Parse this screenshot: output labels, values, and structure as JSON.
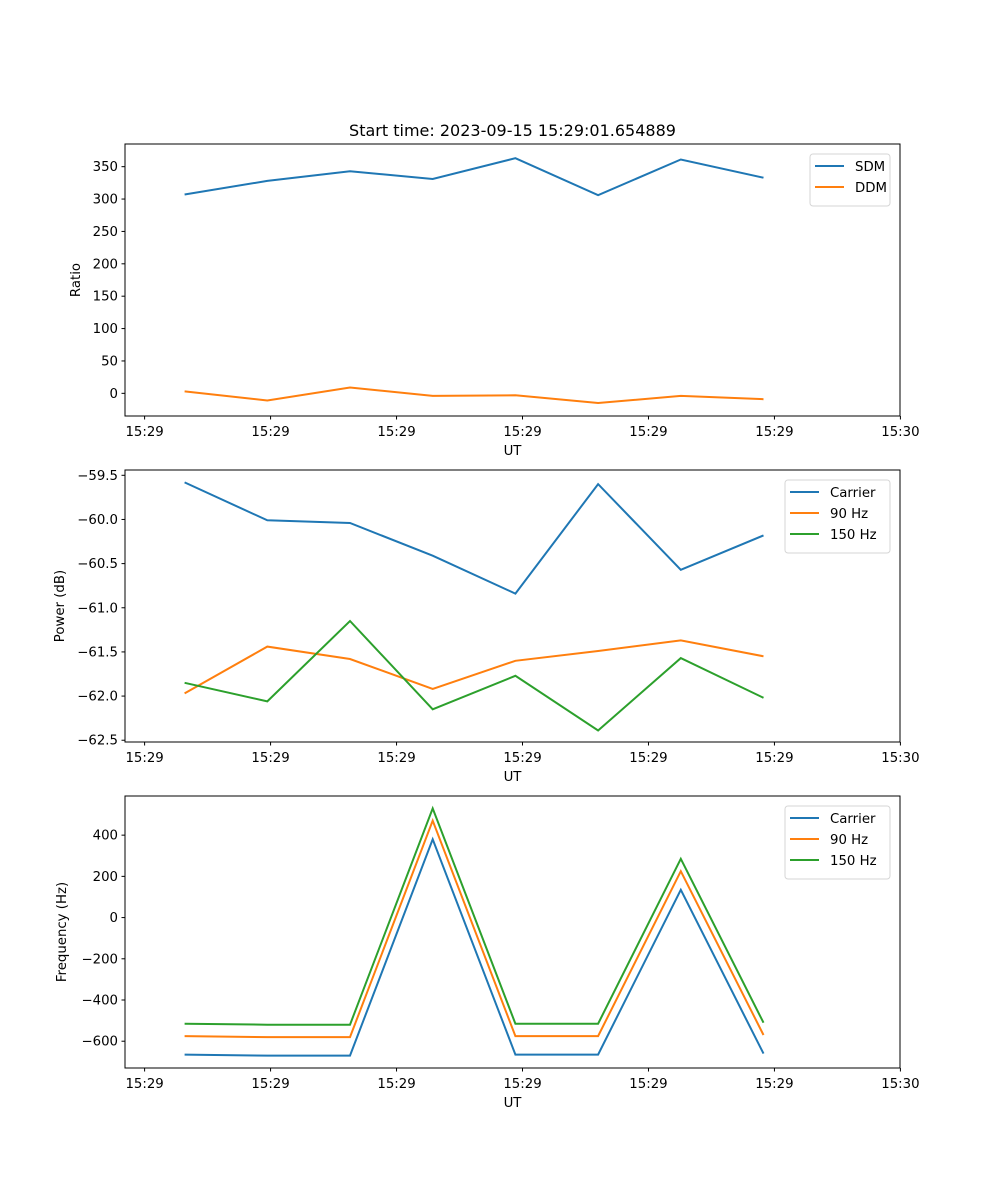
{
  "figure": {
    "title": "Start time: 2023-09-15 15:29:01.654889"
  },
  "chart_data": [
    {
      "type": "line",
      "title": "Start time: 2023-09-15 15:29:01.654889",
      "xlabel": "UT",
      "ylabel": "Ratio",
      "x_tick_labels": [
        "15:29",
        "15:29",
        "15:29",
        "15:29",
        "15:29",
        "15:29",
        "15:30"
      ],
      "y_ticks": [
        0,
        50,
        100,
        150,
        200,
        250,
        300,
        350
      ],
      "y_tick_labels": [
        "0",
        "50",
        "100",
        "150",
        "200",
        "250",
        "300",
        "350"
      ],
      "ylim": [
        -35,
        385
      ],
      "x_index_range": [
        -0.72,
        8.65
      ],
      "x_index": [
        0,
        1,
        2,
        3,
        4,
        5,
        6,
        7
      ],
      "legend": "top-right",
      "grid": false,
      "series": [
        {
          "name": "SDM",
          "color": "#1f77b4",
          "values": [
            307,
            328,
            343,
            331,
            363,
            306,
            361,
            333
          ]
        },
        {
          "name": "DDM",
          "color": "#ff7f0e",
          "values": [
            3,
            -11,
            9,
            -4,
            -3,
            -15,
            -4,
            -9
          ]
        }
      ]
    },
    {
      "type": "line",
      "title": "",
      "xlabel": "UT",
      "ylabel": "Power (dB)",
      "x_tick_labels": [
        "15:29",
        "15:29",
        "15:29",
        "15:29",
        "15:29",
        "15:29",
        "15:30"
      ],
      "y_ticks": [
        -59.5,
        -60.0,
        -60.5,
        -61.0,
        -61.5,
        -62.0,
        -62.5
      ],
      "y_tick_labels": [
        "−59.5",
        "−60.0",
        "−60.5",
        "−61.0",
        "−61.5",
        "−62.0",
        "−62.5"
      ],
      "ylim": [
        -62.52,
        -59.44
      ],
      "x_index_range": [
        -0.72,
        8.65
      ],
      "x_index": [
        0,
        1,
        2,
        3,
        4,
        5,
        6,
        7
      ],
      "legend": "top-right",
      "grid": false,
      "series": [
        {
          "name": "Carrier",
          "color": "#1f77b4",
          "values": [
            -59.58,
            -60.01,
            -60.04,
            -60.41,
            -60.84,
            -59.6,
            -60.57,
            -60.18
          ]
        },
        {
          "name": "90 Hz",
          "color": "#ff7f0e",
          "values": [
            -61.97,
            -61.44,
            -61.58,
            -61.92,
            -61.6,
            -61.49,
            -61.37,
            -61.55
          ]
        },
        {
          "name": "150 Hz",
          "color": "#2ca02c",
          "values": [
            -61.85,
            -62.06,
            -61.15,
            -62.15,
            -61.77,
            -62.39,
            -61.57,
            -62.02
          ]
        }
      ]
    },
    {
      "type": "line",
      "title": "",
      "xlabel": "UT",
      "ylabel": "Frequency (Hz)",
      "x_tick_labels": [
        "15:29",
        "15:29",
        "15:29",
        "15:29",
        "15:29",
        "15:29",
        "15:30"
      ],
      "y_ticks": [
        -600,
        -400,
        -200,
        0,
        200,
        400
      ],
      "y_tick_labels": [
        "−600",
        "−400",
        "−200",
        "0",
        "200",
        "400"
      ],
      "ylim": [
        -730,
        590
      ],
      "x_index_range": [
        -0.72,
        8.65
      ],
      "x_index": [
        0,
        1,
        2,
        3,
        4,
        5,
        6,
        7
      ],
      "legend": "top-right",
      "grid": false,
      "series": [
        {
          "name": "Carrier",
          "color": "#1f77b4",
          "values": [
            -665,
            -670,
            -670,
            380,
            -665,
            -665,
            135,
            -660
          ]
        },
        {
          "name": "90 Hz",
          "color": "#ff7f0e",
          "values": [
            -575,
            -580,
            -580,
            470,
            -575,
            -575,
            225,
            -570
          ]
        },
        {
          "name": "150 Hz",
          "color": "#2ca02c",
          "values": [
            -515,
            -520,
            -520,
            530,
            -515,
            -515,
            285,
            -510
          ]
        }
      ]
    }
  ]
}
